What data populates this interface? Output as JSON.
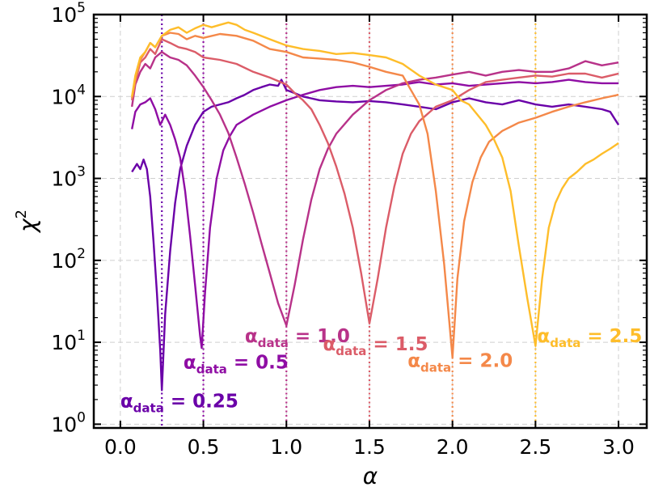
{
  "chart_data": {
    "type": "line",
    "xlabel": "α",
    "ylabel": "χ",
    "ylabel_superscript": "2",
    "yscale": "log",
    "xlim": [
      -0.16,
      3.17
    ],
    "ylim": [
      0.9,
      100000
    ],
    "grid": true,
    "x_ticks": [
      {
        "value": 0.0,
        "label": "0.0"
      },
      {
        "value": 0.5,
        "label": "0.5"
      },
      {
        "value": 1.0,
        "label": "1.0"
      },
      {
        "value": 1.5,
        "label": "1.5"
      },
      {
        "value": 2.0,
        "label": "2.0"
      },
      {
        "value": 2.5,
        "label": "2.5"
      },
      {
        "value": 3.0,
        "label": "3.0"
      }
    ],
    "y_ticks": [
      {
        "value": 1,
        "base": "10",
        "exp": "0"
      },
      {
        "value": 10,
        "base": "10",
        "exp": "1"
      },
      {
        "value": 100,
        "base": "10",
        "exp": "2"
      },
      {
        "value": 1000,
        "base": "10",
        "exp": "3"
      },
      {
        "value": 10000,
        "base": "10",
        "exp": "4"
      },
      {
        "value": 100000,
        "base": "10",
        "exp": "5"
      }
    ],
    "series": [
      {
        "name": "α_data = 0.25",
        "alpha_data": 0.25,
        "color": "#6a00a8",
        "annotation": {
          "prefix": "α",
          "sub": "data",
          "suffix": " = 0.25",
          "anchor_x": 0.0,
          "anchor_y": 1.6
        },
        "points": [
          [
            0.07,
            1200
          ],
          [
            0.1,
            1500
          ],
          [
            0.12,
            1300
          ],
          [
            0.14,
            1700
          ],
          [
            0.16,
            1300
          ],
          [
            0.18,
            600
          ],
          [
            0.2,
            170
          ],
          [
            0.22,
            40
          ],
          [
            0.24,
            8
          ],
          [
            0.25,
            2.6
          ],
          [
            0.27,
            22
          ],
          [
            0.3,
            130
          ],
          [
            0.33,
            500
          ],
          [
            0.36,
            1300
          ],
          [
            0.4,
            2500
          ],
          [
            0.45,
            4500
          ],
          [
            0.5,
            6500
          ],
          [
            0.55,
            7500
          ],
          [
            0.6,
            8000
          ],
          [
            0.65,
            8500
          ],
          [
            0.7,
            9500
          ],
          [
            0.75,
            10500
          ],
          [
            0.8,
            12000
          ],
          [
            0.85,
            13000
          ],
          [
            0.9,
            14000
          ],
          [
            0.95,
            13500
          ],
          [
            0.97,
            16000
          ],
          [
            1.0,
            12000
          ],
          [
            1.05,
            11000
          ],
          [
            1.1,
            10000
          ],
          [
            1.2,
            9000
          ],
          [
            1.3,
            8700
          ],
          [
            1.4,
            8500
          ],
          [
            1.5,
            8800
          ],
          [
            1.6,
            8500
          ],
          [
            1.7,
            8000
          ],
          [
            1.8,
            7500
          ],
          [
            1.9,
            7000
          ],
          [
            2.0,
            8500
          ],
          [
            2.1,
            9500
          ],
          [
            2.2,
            8500
          ],
          [
            2.3,
            8000
          ],
          [
            2.4,
            9000
          ],
          [
            2.5,
            8000
          ],
          [
            2.6,
            7500
          ],
          [
            2.7,
            8000
          ],
          [
            2.8,
            7500
          ],
          [
            2.9,
            7000
          ],
          [
            2.95,
            6500
          ],
          [
            3.0,
            4500
          ]
        ]
      },
      {
        "name": "α_data = 0.5",
        "alpha_data": 0.5,
        "color": "#8f0da4",
        "annotation": {
          "prefix": "α",
          "sub": "data",
          "suffix": " = 0.5",
          "anchor_x": 0.38,
          "anchor_y": 4.8
        },
        "points": [
          [
            0.07,
            4000
          ],
          [
            0.09,
            6500
          ],
          [
            0.12,
            8000
          ],
          [
            0.15,
            8500
          ],
          [
            0.18,
            9500
          ],
          [
            0.21,
            7000
          ],
          [
            0.24,
            4500
          ],
          [
            0.27,
            6000
          ],
          [
            0.3,
            4500
          ],
          [
            0.33,
            3000
          ],
          [
            0.36,
            1800
          ],
          [
            0.39,
            700
          ],
          [
            0.42,
            200
          ],
          [
            0.45,
            50
          ],
          [
            0.48,
            12
          ],
          [
            0.49,
            8.5
          ],
          [
            0.51,
            40
          ],
          [
            0.54,
            250
          ],
          [
            0.58,
            1000
          ],
          [
            0.62,
            2200
          ],
          [
            0.66,
            3300
          ],
          [
            0.7,
            4500
          ],
          [
            0.8,
            6000
          ],
          [
            0.9,
            7500
          ],
          [
            1.0,
            9000
          ],
          [
            1.1,
            10500
          ],
          [
            1.2,
            12000
          ],
          [
            1.3,
            13000
          ],
          [
            1.4,
            13500
          ],
          [
            1.5,
            13000
          ],
          [
            1.6,
            13500
          ],
          [
            1.7,
            14000
          ],
          [
            1.8,
            15000
          ],
          [
            1.9,
            14000
          ],
          [
            2.0,
            14500
          ],
          [
            2.1,
            13500
          ],
          [
            2.2,
            14000
          ],
          [
            2.3,
            14500
          ],
          [
            2.4,
            15000
          ],
          [
            2.5,
            14500
          ],
          [
            2.6,
            15000
          ],
          [
            2.7,
            16000
          ],
          [
            2.8,
            15000
          ],
          [
            2.9,
            14500
          ],
          [
            3.0,
            14500
          ]
        ]
      },
      {
        "name": "α_data = 1.0",
        "alpha_data": 1.0,
        "color": "#b83289",
        "annotation": {
          "prefix": "α",
          "sub": "data",
          "suffix": " = 1.0",
          "anchor_x": 0.75,
          "anchor_y": 10.0
        },
        "points": [
          [
            0.07,
            7500
          ],
          [
            0.09,
            14000
          ],
          [
            0.12,
            20000
          ],
          [
            0.15,
            25000
          ],
          [
            0.18,
            22000
          ],
          [
            0.21,
            30000
          ],
          [
            0.25,
            35000
          ],
          [
            0.3,
            30000
          ],
          [
            0.35,
            28000
          ],
          [
            0.4,
            24000
          ],
          [
            0.45,
            18000
          ],
          [
            0.5,
            13000
          ],
          [
            0.55,
            9000
          ],
          [
            0.6,
            6000
          ],
          [
            0.65,
            3600
          ],
          [
            0.7,
            1800
          ],
          [
            0.75,
            850
          ],
          [
            0.8,
            380
          ],
          [
            0.85,
            160
          ],
          [
            0.9,
            70
          ],
          [
            0.95,
            30
          ],
          [
            1.0,
            16
          ],
          [
            1.05,
            50
          ],
          [
            1.1,
            180
          ],
          [
            1.15,
            550
          ],
          [
            1.2,
            1300
          ],
          [
            1.25,
            2300
          ],
          [
            1.3,
            3500
          ],
          [
            1.4,
            6000
          ],
          [
            1.5,
            9000
          ],
          [
            1.6,
            12000
          ],
          [
            1.7,
            14500
          ],
          [
            1.8,
            16000
          ],
          [
            1.9,
            17000
          ],
          [
            2.0,
            18500
          ],
          [
            2.1,
            20000
          ],
          [
            2.2,
            18000
          ],
          [
            2.3,
            20000
          ],
          [
            2.4,
            21000
          ],
          [
            2.5,
            20000
          ],
          [
            2.6,
            20000
          ],
          [
            2.7,
            22000
          ],
          [
            2.8,
            27000
          ],
          [
            2.9,
            24000
          ],
          [
            3.0,
            26000
          ]
        ]
      },
      {
        "name": "α_data = 1.5",
        "alpha_data": 1.5,
        "color": "#db5c68",
        "annotation": {
          "prefix": "α",
          "sub": "data",
          "suffix": " = 1.5",
          "anchor_x": 1.22,
          "anchor_y": 8.0
        },
        "points": [
          [
            0.07,
            9000
          ],
          [
            0.09,
            15000
          ],
          [
            0.12,
            26000
          ],
          [
            0.15,
            30000
          ],
          [
            0.18,
            38000
          ],
          [
            0.21,
            33000
          ],
          [
            0.25,
            50000
          ],
          [
            0.3,
            45000
          ],
          [
            0.35,
            40000
          ],
          [
            0.4,
            38000
          ],
          [
            0.45,
            35000
          ],
          [
            0.5,
            30000
          ],
          [
            0.6,
            28000
          ],
          [
            0.7,
            25000
          ],
          [
            0.8,
            20000
          ],
          [
            0.9,
            17000
          ],
          [
            1.0,
            14000
          ],
          [
            1.05,
            11000
          ],
          [
            1.1,
            9000
          ],
          [
            1.15,
            7000
          ],
          [
            1.2,
            4500
          ],
          [
            1.25,
            2700
          ],
          [
            1.3,
            1400
          ],
          [
            1.35,
            650
          ],
          [
            1.4,
            250
          ],
          [
            1.45,
            70
          ],
          [
            1.5,
            17
          ],
          [
            1.55,
            60
          ],
          [
            1.6,
            250
          ],
          [
            1.65,
            800
          ],
          [
            1.7,
            2000
          ],
          [
            1.75,
            3500
          ],
          [
            1.8,
            5000
          ],
          [
            1.9,
            7500
          ],
          [
            2.0,
            9000
          ],
          [
            2.1,
            12000
          ],
          [
            2.2,
            15000
          ],
          [
            2.3,
            16000
          ],
          [
            2.4,
            17000
          ],
          [
            2.5,
            18000
          ],
          [
            2.6,
            17500
          ],
          [
            2.7,
            19000
          ],
          [
            2.8,
            19000
          ],
          [
            2.9,
            17000
          ],
          [
            3.0,
            19000
          ]
        ]
      },
      {
        "name": "α_data = 2.0",
        "alpha_data": 2.0,
        "color": "#f48849",
        "annotation": {
          "prefix": "α",
          "sub": "data",
          "suffix": " = 2.0",
          "anchor_x": 1.73,
          "anchor_y": 5.0
        },
        "points": [
          [
            0.07,
            9500
          ],
          [
            0.09,
            16000
          ],
          [
            0.12,
            28000
          ],
          [
            0.15,
            35000
          ],
          [
            0.18,
            45000
          ],
          [
            0.21,
            40000
          ],
          [
            0.25,
            55000
          ],
          [
            0.3,
            60000
          ],
          [
            0.35,
            58000
          ],
          [
            0.4,
            50000
          ],
          [
            0.45,
            55000
          ],
          [
            0.5,
            52000
          ],
          [
            0.6,
            58000
          ],
          [
            0.7,
            55000
          ],
          [
            0.8,
            48000
          ],
          [
            0.9,
            38000
          ],
          [
            1.0,
            35000
          ],
          [
            1.1,
            30000
          ],
          [
            1.2,
            29000
          ],
          [
            1.3,
            28000
          ],
          [
            1.4,
            26000
          ],
          [
            1.5,
            23000
          ],
          [
            1.6,
            20000
          ],
          [
            1.7,
            18000
          ],
          [
            1.75,
            12000
          ],
          [
            1.8,
            8000
          ],
          [
            1.85,
            3500
          ],
          [
            1.9,
            700
          ],
          [
            1.95,
            90
          ],
          [
            2.0,
            6.5
          ],
          [
            2.03,
            60
          ],
          [
            2.07,
            300
          ],
          [
            2.12,
            900
          ],
          [
            2.17,
            1800
          ],
          [
            2.22,
            2800
          ],
          [
            2.3,
            3800
          ],
          [
            2.4,
            4800
          ],
          [
            2.5,
            5500
          ],
          [
            2.6,
            6500
          ],
          [
            2.7,
            7500
          ],
          [
            2.8,
            8500
          ],
          [
            2.9,
            9500
          ],
          [
            3.0,
            10500
          ]
        ]
      },
      {
        "name": "α_data = 2.5",
        "alpha_data": 2.5,
        "color": "#febd2a",
        "annotation": {
          "prefix": "α",
          "sub": "data",
          "suffix": " = 2.5",
          "anchor_x": 2.51,
          "anchor_y": 10.0
        },
        "points": [
          [
            0.07,
            10000
          ],
          [
            0.09,
            18000
          ],
          [
            0.12,
            30000
          ],
          [
            0.15,
            35000
          ],
          [
            0.18,
            45000
          ],
          [
            0.21,
            40000
          ],
          [
            0.25,
            55000
          ],
          [
            0.3,
            65000
          ],
          [
            0.35,
            70000
          ],
          [
            0.4,
            60000
          ],
          [
            0.45,
            68000
          ],
          [
            0.5,
            75000
          ],
          [
            0.55,
            70000
          ],
          [
            0.6,
            75000
          ],
          [
            0.65,
            80000
          ],
          [
            0.7,
            75000
          ],
          [
            0.75,
            65000
          ],
          [
            0.8,
            60000
          ],
          [
            0.9,
            50000
          ],
          [
            1.0,
            42000
          ],
          [
            1.1,
            38000
          ],
          [
            1.2,
            36000
          ],
          [
            1.3,
            33000
          ],
          [
            1.4,
            34000
          ],
          [
            1.5,
            32000
          ],
          [
            1.6,
            30000
          ],
          [
            1.7,
            25000
          ],
          [
            1.8,
            18000
          ],
          [
            1.9,
            14000
          ],
          [
            2.0,
            12000
          ],
          [
            2.05,
            9000
          ],
          [
            2.1,
            8000
          ],
          [
            2.15,
            6000
          ],
          [
            2.2,
            4500
          ],
          [
            2.25,
            3000
          ],
          [
            2.3,
            1800
          ],
          [
            2.35,
            700
          ],
          [
            2.4,
            150
          ],
          [
            2.45,
            35
          ],
          [
            2.5,
            9
          ],
          [
            2.54,
            60
          ],
          [
            2.58,
            250
          ],
          [
            2.62,
            500
          ],
          [
            2.66,
            750
          ],
          [
            2.7,
            1000
          ],
          [
            2.75,
            1200
          ],
          [
            2.8,
            1500
          ],
          [
            2.85,
            1700
          ],
          [
            2.9,
            2000
          ],
          [
            2.95,
            2300
          ],
          [
            3.0,
            2700
          ]
        ]
      }
    ]
  }
}
